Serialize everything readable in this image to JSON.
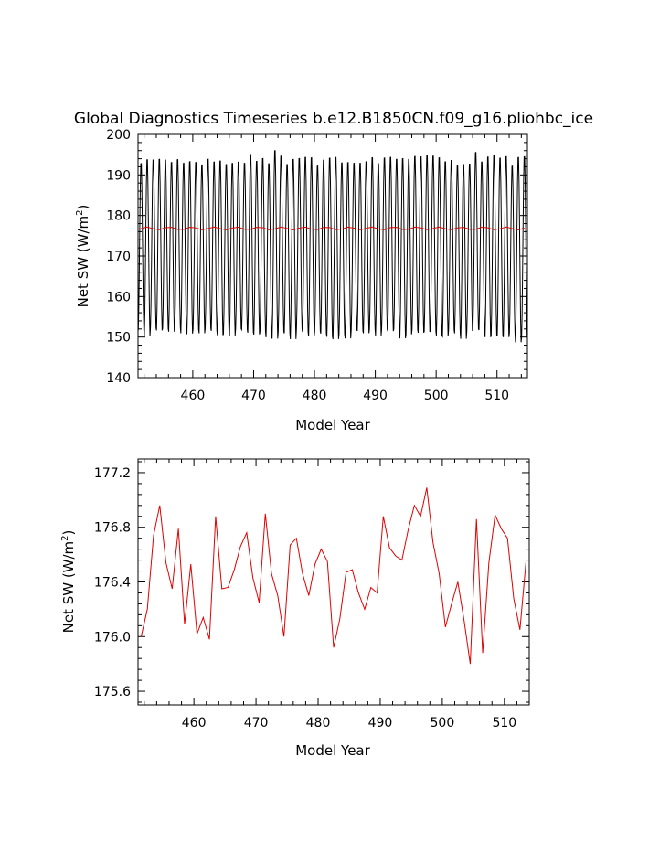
{
  "chart_data": [
    {
      "type": "line",
      "title": "Global Diagnostics Timeseries b.e12.B1850CN.f09_g16.pliohbc_ice",
      "xlabel": "Model Year",
      "ylabel": "Net SW (W/m",
      "ylabel_sup": "2",
      "ylabel_end": ")",
      "xlim": [
        451,
        515
      ],
      "ylim": [
        140,
        200
      ],
      "xticks": [
        460,
        470,
        480,
        490,
        500,
        510
      ],
      "yticks": [
        140,
        150,
        160,
        170,
        180,
        190,
        200
      ],
      "ytick_labels": [
        "140",
        "150",
        "160",
        "170",
        "180",
        "190",
        "200"
      ],
      "grid": false,
      "series": [
        {
          "color": "#000000",
          "seasonal": true,
          "maxima": [
            193.5,
            194.5,
            194.4,
            194.6,
            194.4,
            193.8,
            194.5,
            193.6,
            194.0,
            193.8,
            193.2,
            194.6,
            193.9,
            194.2,
            193.3,
            193.6,
            193.9,
            193.6,
            195.8,
            194.1,
            194.8,
            193.5,
            196.8,
            195.4,
            193.3,
            194.6,
            194.8,
            195.1,
            195.0,
            192.9,
            194.4,
            194.9,
            195.1,
            193.7,
            193.8,
            193.6,
            193.6,
            194.0,
            195.0,
            193.5,
            194.9,
            195.1,
            194.6,
            194.8,
            194.6,
            195.3,
            195.2,
            195.6,
            195.4,
            195.0,
            194.0,
            194.3,
            193.0,
            193.3,
            193.4,
            196.3,
            193.9,
            195.2,
            195.6,
            194.9,
            195.3,
            192.9,
            195.1,
            195.3
          ],
          "minima": [
            151.0,
            149.5,
            151.5,
            150.9,
            151.4,
            150.6,
            151.6,
            150.2,
            150.1,
            151.1,
            150.2,
            151.4,
            150.8,
            149.7,
            150.0,
            149.6,
            151.3,
            151.1,
            150.3,
            149.9,
            150.5,
            149.2,
            148.8,
            150.6,
            150.2,
            148.7,
            151.3,
            150.5,
            149.4,
            150.7,
            150.1,
            149.3,
            148.7,
            150.0,
            148.9,
            151.1,
            150.8,
            150.2,
            151.2,
            149.6,
            151.1,
            150.7,
            151.2,
            148.9,
            149.9,
            151.1,
            150.3,
            150.6,
            150.6,
            149.6,
            149.4,
            151.0,
            150.2,
            148.8,
            150.8,
            151.2,
            151.0,
            149.2,
            149.6,
            149.6,
            149.2,
            150.2,
            147.9,
            149.0
          ]
        },
        {
          "color": "#e00000",
          "annual_mean": true
        }
      ]
    },
    {
      "type": "line",
      "title": "",
      "xlabel": "Model Year",
      "ylabel": "Net SW (W/m",
      "ylabel_sup": "2",
      "ylabel_end": ")",
      "xlim": [
        451,
        514
      ],
      "ylim": [
        175.5,
        177.3
      ],
      "xticks": [
        460,
        470,
        480,
        490,
        500,
        510
      ],
      "yticks": [
        175.6,
        176.0,
        176.4,
        176.8,
        177.2
      ],
      "ytick_labels": [
        "175.6",
        "176.0",
        "176.4",
        "176.8",
        "177.2"
      ],
      "grid": false,
      "series": [
        {
          "color": "#e00000",
          "x": [
            451.5,
            452.5,
            453.5,
            454.5,
            455.5,
            456.5,
            457.5,
            458.5,
            459.5,
            460.5,
            461.5,
            462.5,
            463.5,
            464.5,
            465.5,
            466.5,
            467.5,
            468.5,
            469.5,
            470.5,
            471.5,
            472.5,
            473.5,
            474.5,
            475.5,
            476.5,
            477.5,
            478.5,
            479.5,
            480.5,
            481.5,
            482.5,
            483.5,
            484.5,
            485.5,
            486.5,
            487.5,
            488.5,
            489.5,
            490.5,
            491.5,
            492.5,
            493.5,
            494.5,
            495.5,
            496.5,
            497.5,
            498.5,
            499.5,
            500.5,
            501.5,
            502.5,
            503.5,
            504.5,
            505.5,
            506.5,
            507.5,
            508.5,
            509.5,
            510.5,
            511.5,
            512.5,
            513.5
          ],
          "values": [
            176.0,
            176.2,
            176.74,
            176.96,
            176.54,
            176.35,
            176.79,
            176.09,
            176.53,
            176.02,
            176.14,
            175.98,
            176.88,
            176.35,
            176.36,
            176.49,
            176.66,
            176.76,
            176.43,
            176.25,
            176.9,
            176.46,
            176.3,
            176.0,
            176.67,
            176.72,
            176.46,
            176.3,
            176.53,
            176.64,
            176.55,
            175.92,
            176.13,
            176.47,
            176.49,
            176.32,
            176.2,
            176.36,
            176.32,
            176.88,
            176.65,
            176.59,
            176.56,
            176.78,
            176.96,
            176.88,
            177.09,
            176.69,
            176.46,
            176.07,
            176.24,
            176.4,
            176.12,
            175.8,
            176.86,
            175.88,
            176.54,
            176.89,
            176.79,
            176.72,
            176.28,
            176.05,
            176.56
          ]
        }
      ]
    }
  ]
}
